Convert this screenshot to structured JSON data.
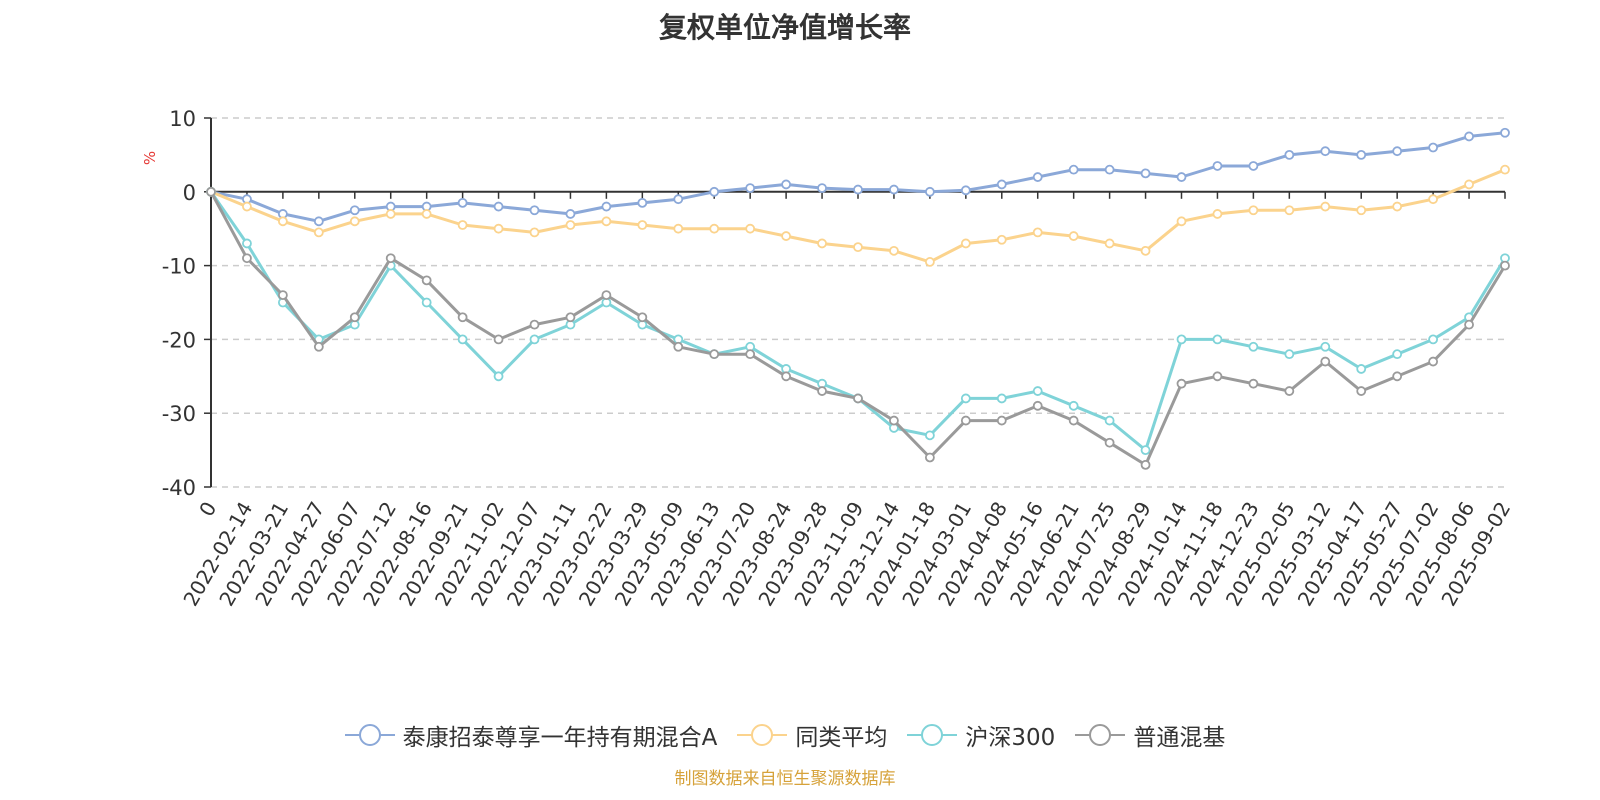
{
  "chart_data": {
    "type": "line",
    "title": "复权单位净值增长率",
    "ylabel": "%",
    "ylim": [
      -40,
      10
    ],
    "yticks": [
      10,
      0,
      -10,
      -20,
      -30,
      -40
    ],
    "grid": true,
    "legend_position": "bottom",
    "source_note": "制图数据来自恒生聚源数据库",
    "x_ticks": [
      "0",
      "2022-02-14",
      "2022-03-21",
      "2022-04-27",
      "2022-06-07",
      "2022-07-12",
      "2022-08-16",
      "2022-09-21",
      "2022-11-02",
      "2022-12-07",
      "2023-01-11",
      "2023-02-22",
      "2023-03-29",
      "2023-05-09",
      "2023-06-13",
      "2023-07-20",
      "2023-08-24",
      "2023-09-28",
      "2023-11-09",
      "2023-12-14",
      "2024-01-18",
      "2024-03-01",
      "2024-04-08",
      "2024-05-16",
      "2024-06-21",
      "2024-07-25",
      "2024-08-29",
      "2024-10-14",
      "2024-11-18",
      "2024-12-23",
      "2025-02-05",
      "2025-03-12",
      "2025-04-17",
      "2025-05-27",
      "2025-07-02",
      "2025-08-06",
      "2025-09-02"
    ],
    "series": [
      {
        "name": "泰康招泰尊享一年持有期混合A",
        "color": "#8ba8d8",
        "values": [
          0,
          -1,
          -3,
          -4,
          -2.5,
          -2,
          -2,
          -1.5,
          -2,
          -2.5,
          -3,
          -2,
          -1.5,
          -1,
          0,
          0.5,
          1,
          0.5,
          0.3,
          0.3,
          0,
          0.2,
          1,
          2,
          3,
          3,
          2.5,
          2,
          3.5,
          3.5,
          5,
          5.5,
          5,
          5.5,
          6,
          7.5,
          8
        ]
      },
      {
        "name": "同类平均",
        "color": "#fbd38d",
        "values": [
          0,
          -2,
          -4,
          -5.5,
          -4,
          -3,
          -3,
          -4.5,
          -5,
          -5.5,
          -4.5,
          -4,
          -4.5,
          -5,
          -5,
          -5,
          -6,
          -7,
          -7.5,
          -8,
          -9.5,
          -7,
          -6.5,
          -5.5,
          -6,
          -7,
          -8,
          -4,
          -3,
          -2.5,
          -2.5,
          -2,
          -2.5,
          -2,
          -1,
          1,
          3
        ]
      },
      {
        "name": "沪深300",
        "color": "#7fd3d8",
        "values": [
          0,
          -7,
          -15,
          -20,
          -18,
          -10,
          -15,
          -20,
          -25,
          -20,
          -18,
          -15,
          -18,
          -20,
          -22,
          -21,
          -24,
          -26,
          -28,
          -32,
          -33,
          -28,
          -28,
          -27,
          -29,
          -31,
          -35,
          -20,
          -20,
          -21,
          -22,
          -21,
          -24,
          -22,
          -20,
          -17,
          -9
        ]
      },
      {
        "name": "普通混基",
        "color": "#9a9a9a",
        "values": [
          0,
          -9,
          -14,
          -21,
          -17,
          -9,
          -12,
          -17,
          -20,
          -18,
          -17,
          -14,
          -17,
          -21,
          -22,
          -22,
          -25,
          -27,
          -28,
          -31,
          -36,
          -31,
          -31,
          -29,
          -31,
          -34,
          -37,
          -26,
          -25,
          -26,
          -27,
          -23,
          -27,
          -25,
          -23,
          -18,
          -10
        ]
      }
    ]
  }
}
